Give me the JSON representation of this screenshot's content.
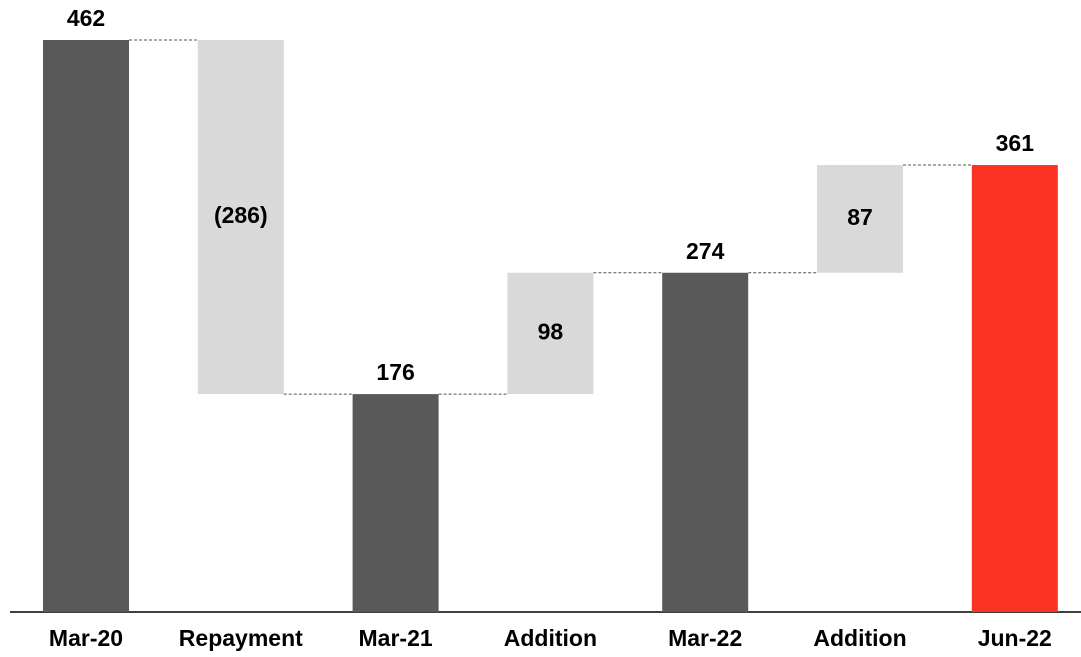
{
  "chart_data": {
    "type": "waterfall",
    "categories": [
      "Mar-20",
      "Repayment",
      "Mar-21",
      "Addition",
      "Mar-22",
      "Addition",
      "Jun-22"
    ],
    "values": [
      462,
      -286,
      176,
      98,
      274,
      87,
      361
    ],
    "value_labels": [
      "462",
      "(286)",
      "176",
      "98",
      "274",
      "87",
      "361"
    ],
    "measures": [
      "total",
      "relative",
      "total",
      "relative",
      "total",
      "relative",
      "total"
    ],
    "colors": [
      "#595959",
      "#d9d9d9",
      "#595959",
      "#d9d9d9",
      "#595959",
      "#d9d9d9",
      "#f93221"
    ]
  }
}
